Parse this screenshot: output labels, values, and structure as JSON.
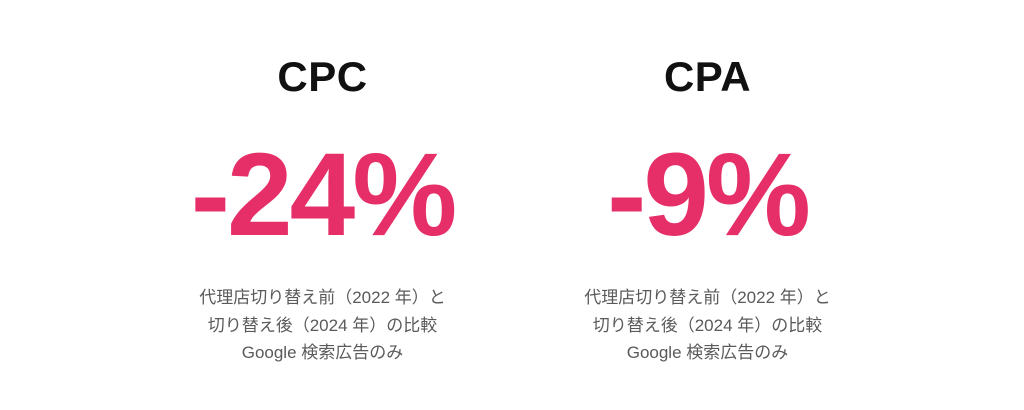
{
  "page": {
    "background": "#ffffff"
  },
  "colors": {
    "accent_pink": "#E62F68",
    "title_black": "#111111",
    "desc_gray": "#5a5a5a"
  },
  "metrics": [
    {
      "label": "CPC",
      "value": "-24%",
      "description_lines": [
        "代理店切り替え前（2022 年）と",
        "切り替え後（2024 年）の比較",
        "Google 検索広告のみ"
      ]
    },
    {
      "label": "CPA",
      "value": "-9%",
      "description_lines": [
        "代理店切り替え前（2022 年）と",
        "切り替え後（2024 年）の比較",
        "Google 検索広告のみ"
      ]
    }
  ],
  "chart_data": {
    "type": "table",
    "title": "",
    "categories": [
      "CPC",
      "CPA"
    ],
    "values": [
      -24,
      -9
    ],
    "unit": "%",
    "annotations": [
      "代理店切り替え前（2022 年）と切り替え後（2024 年）の比較",
      "Google 検索広告のみ"
    ]
  }
}
